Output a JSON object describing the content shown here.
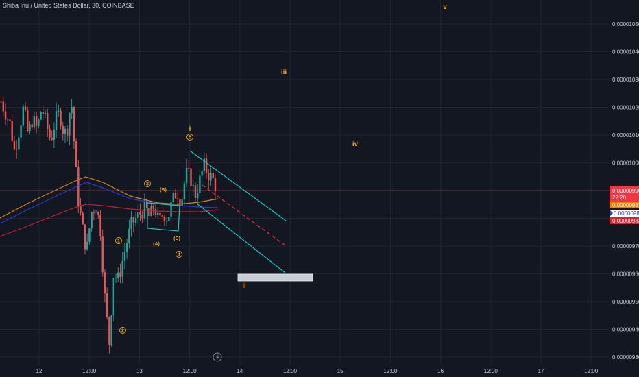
{
  "header": {
    "title": "Shiba Inu / United States Dollar, 30, COINBASE"
  },
  "chart_data": {
    "type": "candlestick",
    "y_ticks": [
      "0.00001050",
      "0.00001040",
      "0.00001030",
      "0.00001020",
      "0.00001010",
      "0.00001000",
      "0.00000990",
      "0.00000980",
      "0.00000970",
      "0.00000960",
      "0.00000950",
      "0.00000940",
      "0.00000930"
    ],
    "y_tick_values": [
      10.5,
      10.4,
      10.3,
      10.2,
      10.1,
      10.0,
      9.9,
      9.8,
      9.7,
      9.6,
      9.5,
      9.4,
      9.3
    ],
    "x_ticks": [
      "12",
      "12:00",
      "13",
      "12:00",
      "14",
      "12:00",
      "15",
      "12:00",
      "16",
      "12:00",
      "17",
      "12:00"
    ],
    "x_tick_hours": [
      0,
      12,
      24,
      36,
      48,
      60,
      72,
      84,
      96,
      108,
      120,
      132
    ],
    "price_tags": {
      "last": "0.00000990",
      "countdown": "22:20",
      "ma1": "0.00000987",
      "ma2": "0.00000986",
      "ma3": "0.00000983"
    },
    "wave_labels": [
      "i",
      "ii",
      "iii",
      "iv",
      "v",
      "1",
      "2",
      "3",
      "4",
      "5",
      "(A)",
      "(B)",
      "(C)"
    ],
    "colors": {
      "up": "#26a69a",
      "down": "#ef5350",
      "channel": "#19c9c4",
      "ma_orange": "#d9822b",
      "ma_blue": "#2a3ad6",
      "ma_red": "#c81e2c",
      "wave": "#f5a524"
    }
  }
}
